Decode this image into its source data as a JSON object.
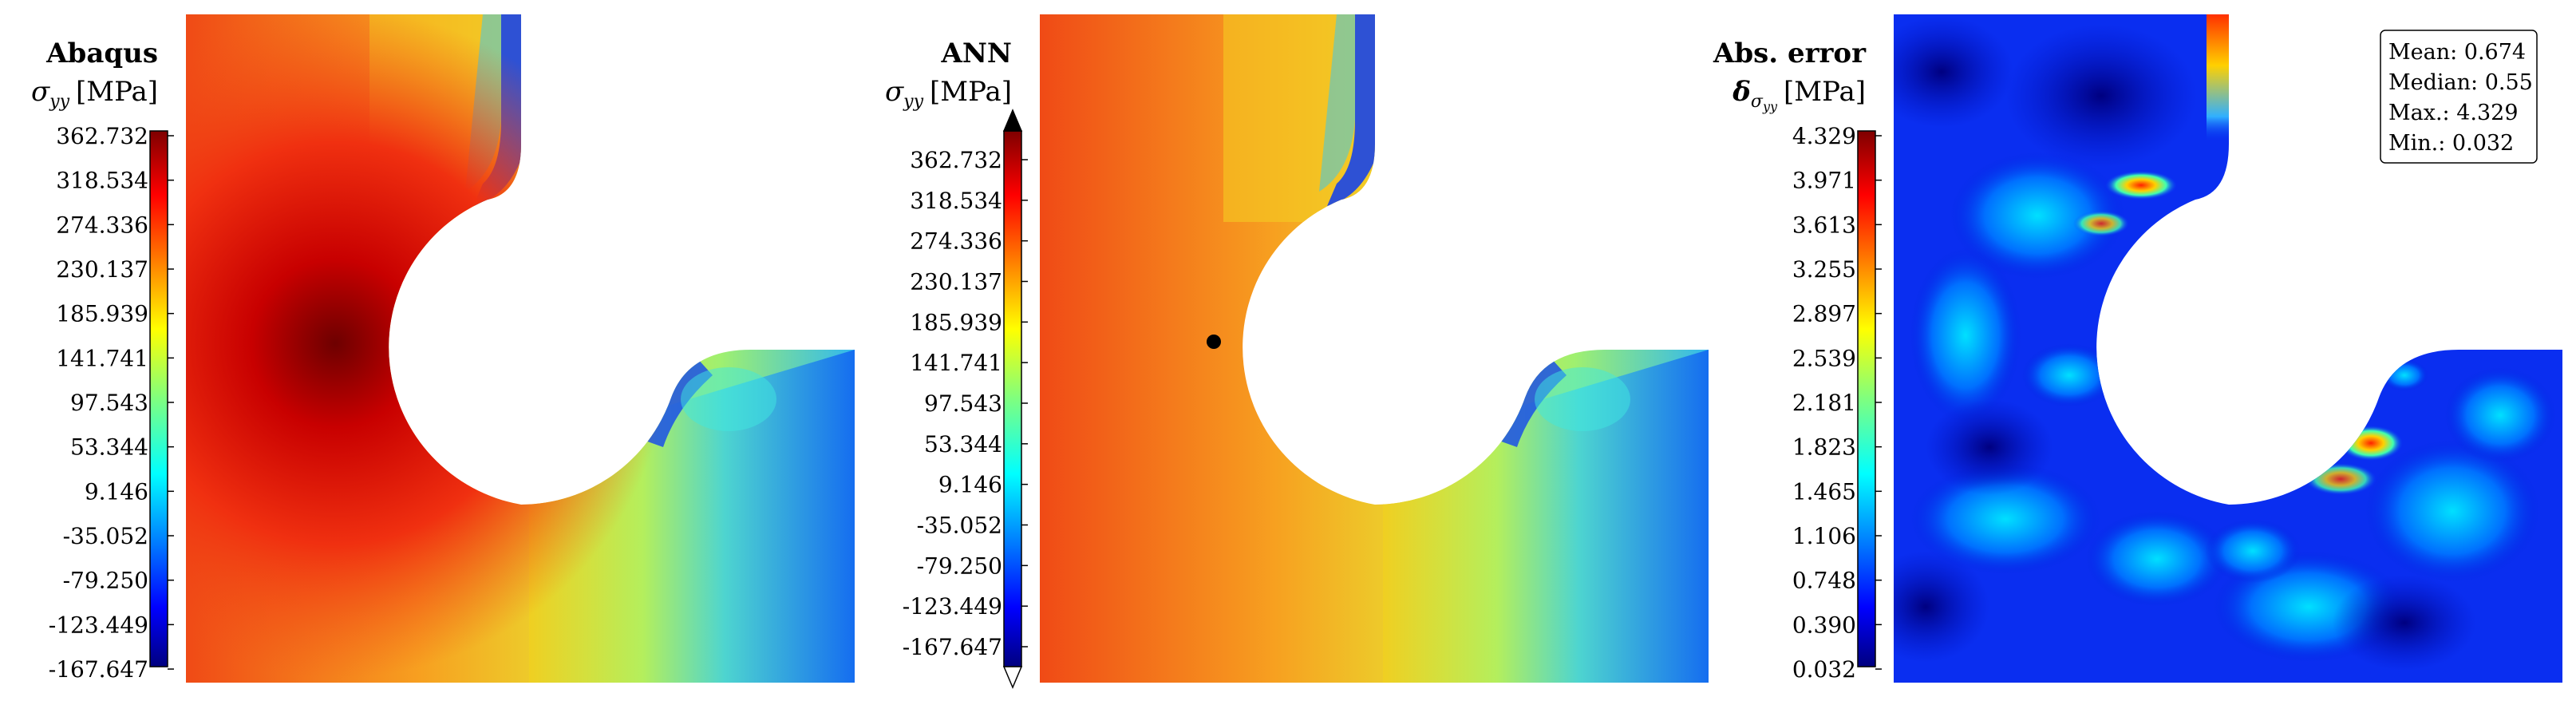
{
  "chart_data": [
    {
      "type": "heatmap",
      "title": "Abaqus",
      "quantity": "σ",
      "quantity_sub": "yy",
      "unit": "[MPa]",
      "colormap": "jet",
      "colorbar_ticks": [
        "362.732",
        "318.534",
        "274.336",
        "230.137",
        "185.939",
        "141.741",
        "97.543",
        "53.344",
        "9.146",
        "-35.052",
        "-79.250",
        "-123.449",
        "-167.647"
      ],
      "vmin": -167.647,
      "vmax": 362.732
    },
    {
      "type": "heatmap",
      "title": "ANN",
      "quantity": "σ",
      "quantity_sub": "yy",
      "unit": "[MPa]",
      "colormap": "jet",
      "colorbar_extend": "both",
      "colorbar_ticks": [
        "362.732",
        "318.534",
        "274.336",
        "230.137",
        "185.939",
        "141.741",
        "97.543",
        "53.344",
        "9.146",
        "-35.052",
        "-79.250",
        "-123.449",
        "-167.647"
      ],
      "vmin": -167.647,
      "vmax": 362.732
    },
    {
      "type": "heatmap",
      "title": "Abs. error",
      "quantity": "δ",
      "quantity_sub": "σ",
      "quantity_subsub": "yy",
      "unit": "[MPa]",
      "colormap": "jet",
      "colorbar_ticks": [
        "4.329",
        "3.971",
        "3.613",
        "3.255",
        "2.897",
        "2.539",
        "2.181",
        "1.823",
        "1.465",
        "1.106",
        "0.748",
        "0.390",
        "0.032"
      ],
      "vmin": 0.032,
      "vmax": 4.329,
      "stats": {
        "mean": "Mean: 0.674",
        "median": "Median: 0.55",
        "max": "Max.: 4.329",
        "min": "Min.: 0.032"
      }
    }
  ],
  "colors": {
    "jet": [
      "#00007f",
      "#0000ff",
      "#007fff",
      "#00ffff",
      "#7fff7f",
      "#ffff00",
      "#ff7f00",
      "#ff0000",
      "#7f0000"
    ]
  }
}
